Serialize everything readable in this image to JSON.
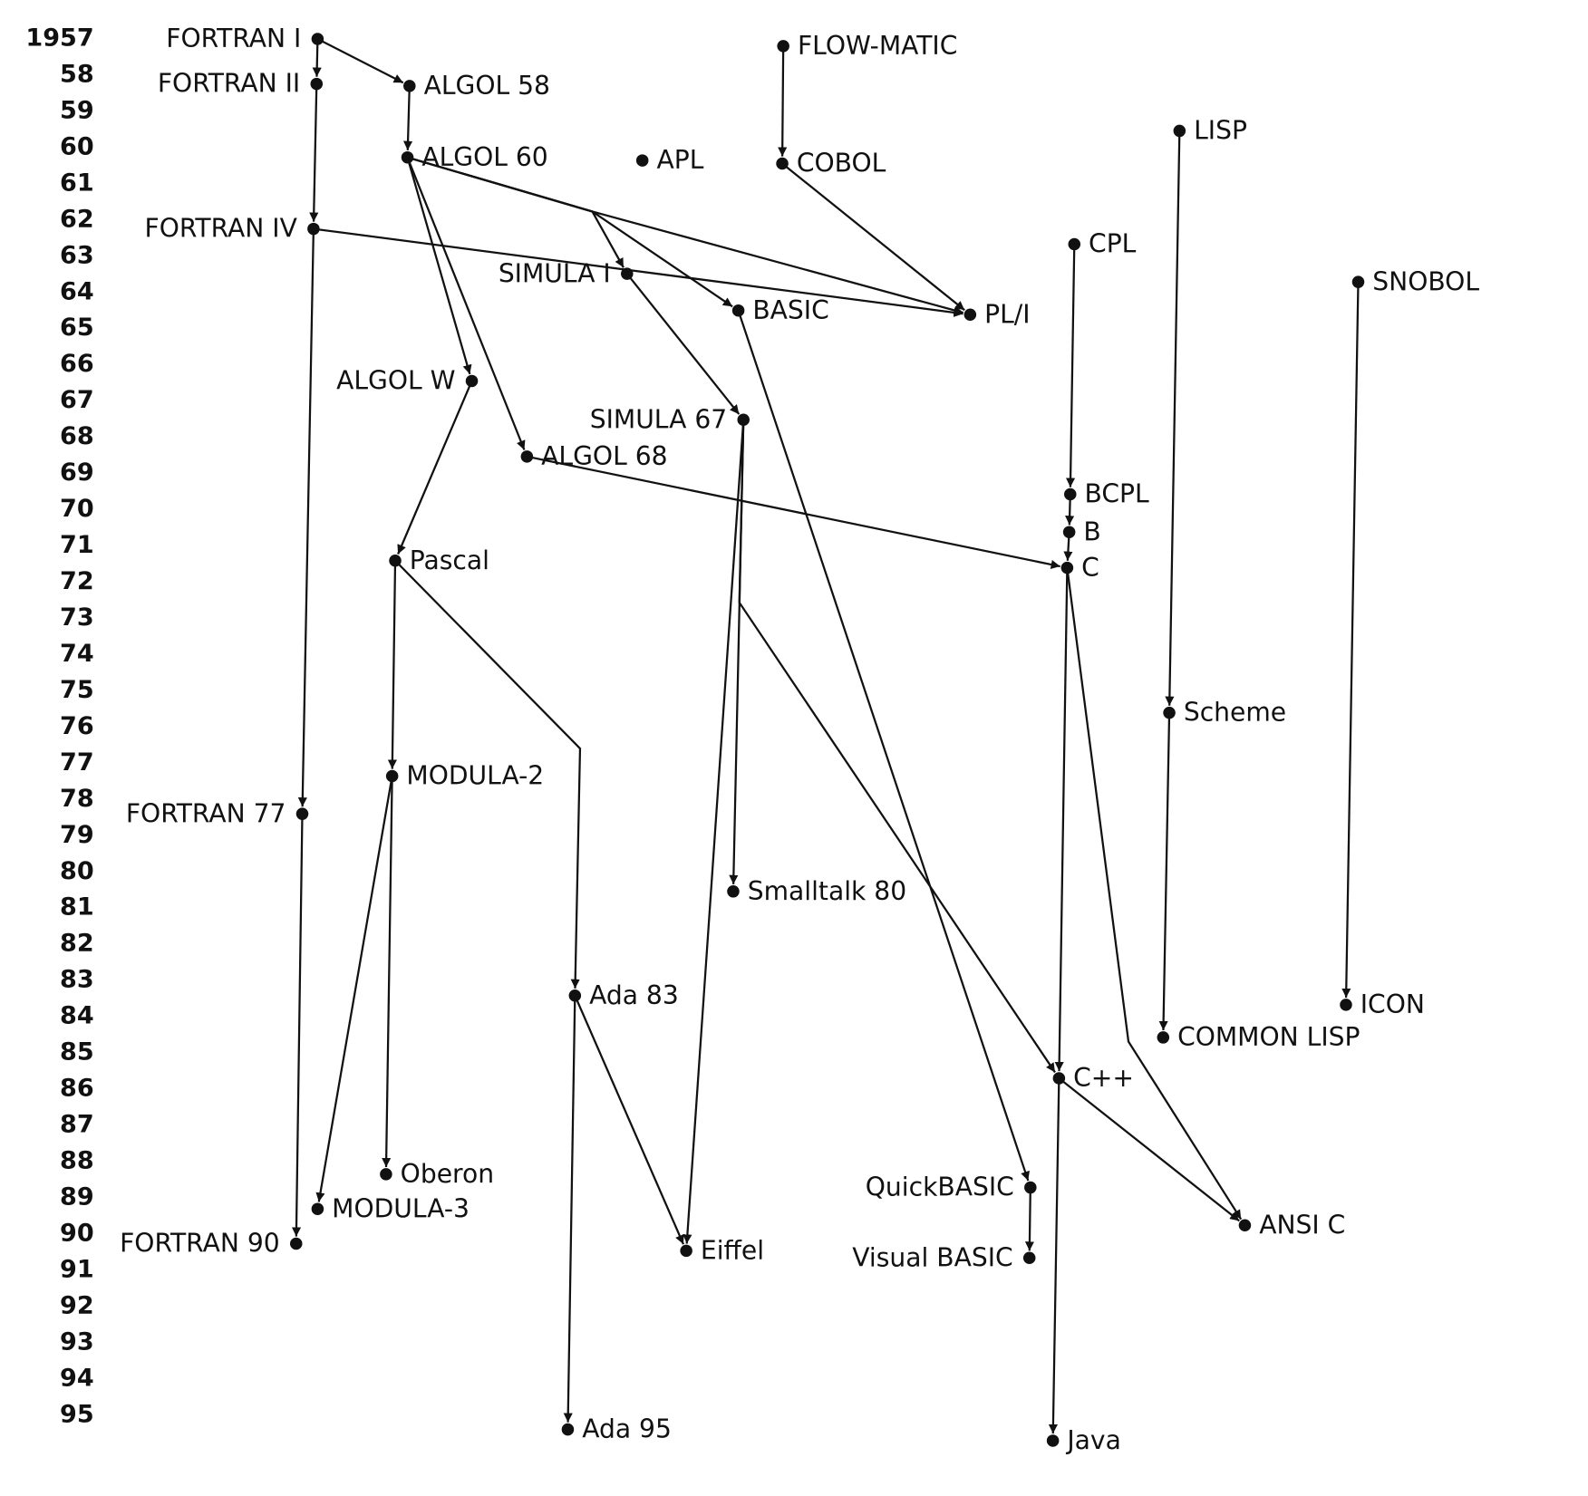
{
  "years": [
    "1957",
    "58",
    "59",
    "60",
    "61",
    "62",
    "63",
    "64",
    "65",
    "66",
    "67",
    "68",
    "69",
    "70",
    "71",
    "72",
    "73",
    "74",
    "75",
    "76",
    "77",
    "78",
    "79",
    "80",
    "81",
    "82",
    "83",
    "84",
    "85",
    "86",
    "87",
    "88",
    "89",
    "90",
    "91",
    "92",
    "93",
    "94",
    "95"
  ],
  "nodes": [
    {
      "label": "FORTRAN I"
    },
    {
      "label": "FORTRAN II"
    },
    {
      "label": "ALGOL 58"
    },
    {
      "label": "ALGOL 60"
    },
    {
      "label": "APL"
    },
    {
      "label": "FLOW-MATIC"
    },
    {
      "label": "COBOL"
    },
    {
      "label": "LISP"
    },
    {
      "label": "FORTRAN IV"
    },
    {
      "label": "CPL"
    },
    {
      "label": "SIMULA I"
    },
    {
      "label": "BASIC"
    },
    {
      "label": "PL/I"
    },
    {
      "label": "SNOBOL"
    },
    {
      "label": "ALGOL W"
    },
    {
      "label": "SIMULA 67"
    },
    {
      "label": "ALGOL 68"
    },
    {
      "label": "BCPL"
    },
    {
      "label": "B"
    },
    {
      "label": "C"
    },
    {
      "label": "Pascal"
    },
    {
      "label": "Scheme"
    },
    {
      "label": "MODULA-2"
    },
    {
      "label": "FORTRAN 77"
    },
    {
      "label": "Smalltalk 80"
    },
    {
      "label": "Ada 83"
    },
    {
      "label": "ICON"
    },
    {
      "label": "COMMON LISP"
    },
    {
      "label": "C++"
    },
    {
      "label": "Oberon"
    },
    {
      "label": "QuickBASIC"
    },
    {
      "label": "MODULA-3"
    },
    {
      "label": "ANSI C"
    },
    {
      "label": "FORTRAN 90"
    },
    {
      "label": "Eiffel"
    },
    {
      "label": "Visual BASIC"
    },
    {
      "label": "Ada 95"
    },
    {
      "label": "Java"
    }
  ]
}
